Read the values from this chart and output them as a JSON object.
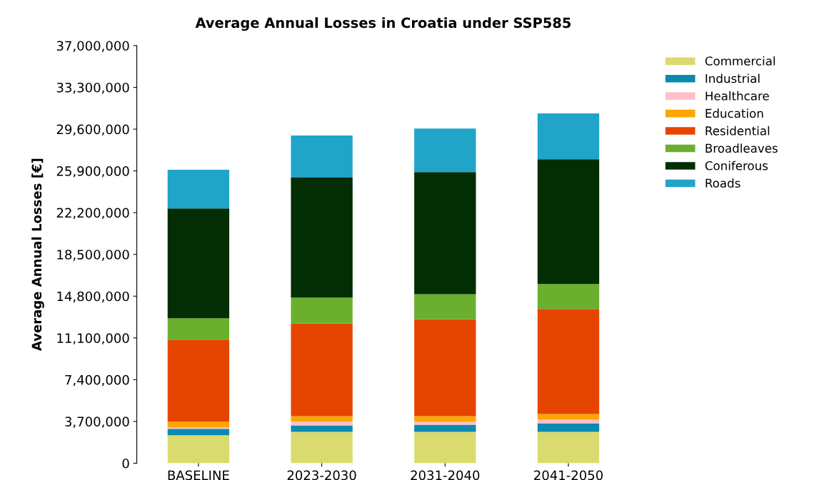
{
  "chart_data": {
    "type": "bar",
    "title": "Average Annual Losses in Croatia under SSP585",
    "ylabel": "Average Annual Losses [€]",
    "categories": [
      "BASELINE",
      "2023-2030",
      "2031-2040",
      "2041-2050"
    ],
    "stacked": true,
    "legend": "top right",
    "grid": false,
    "ylim": [
      0,
      37000000
    ],
    "yticks": [
      {
        "value": 0,
        "label": "0"
      },
      {
        "value": 3700000,
        "label": "3,700,000"
      },
      {
        "value": 7400000,
        "label": "7,400,000"
      },
      {
        "value": 11100000,
        "label": "11,100,000"
      },
      {
        "value": 14800000,
        "label": "14,800,000"
      },
      {
        "value": 18500000,
        "label": "18,500,000"
      },
      {
        "value": 22200000,
        "label": "22,200,000"
      },
      {
        "value": 25900000,
        "label": "25,900,000"
      },
      {
        "value": 29600000,
        "label": "29,600,000"
      },
      {
        "value": 33300000,
        "label": "33,300,000"
      },
      {
        "value": 37000000,
        "label": "37,000,000"
      }
    ],
    "series": [
      {
        "name": "Commercial",
        "color": "#d9db6e",
        "values": [
          2470000,
          2780000,
          2780000,
          2780000
        ]
      },
      {
        "name": "Industrial",
        "color": "#0a8ab0",
        "values": [
          570000,
          570000,
          630000,
          760000
        ]
      },
      {
        "name": "Healthcare",
        "color": "#ffc0cb",
        "values": [
          130000,
          320000,
          250000,
          320000
        ]
      },
      {
        "name": "Education",
        "color": "#ffa500",
        "values": [
          500000,
          500000,
          500000,
          500000
        ]
      },
      {
        "name": "Residential",
        "color": "#e64500",
        "values": [
          7270000,
          8220000,
          8600000,
          9300000
        ]
      },
      {
        "name": "Broadleaves",
        "color": "#6ab02e",
        "values": [
          1900000,
          2280000,
          2210000,
          2210000
        ]
      },
      {
        "name": "Coniferous",
        "color": "#032d02",
        "values": [
          9740000,
          10630000,
          10820000,
          11070000
        ]
      },
      {
        "name": "Roads",
        "color": "#20a4c8",
        "values": [
          3420000,
          3730000,
          3860000,
          4050000
        ]
      }
    ]
  }
}
